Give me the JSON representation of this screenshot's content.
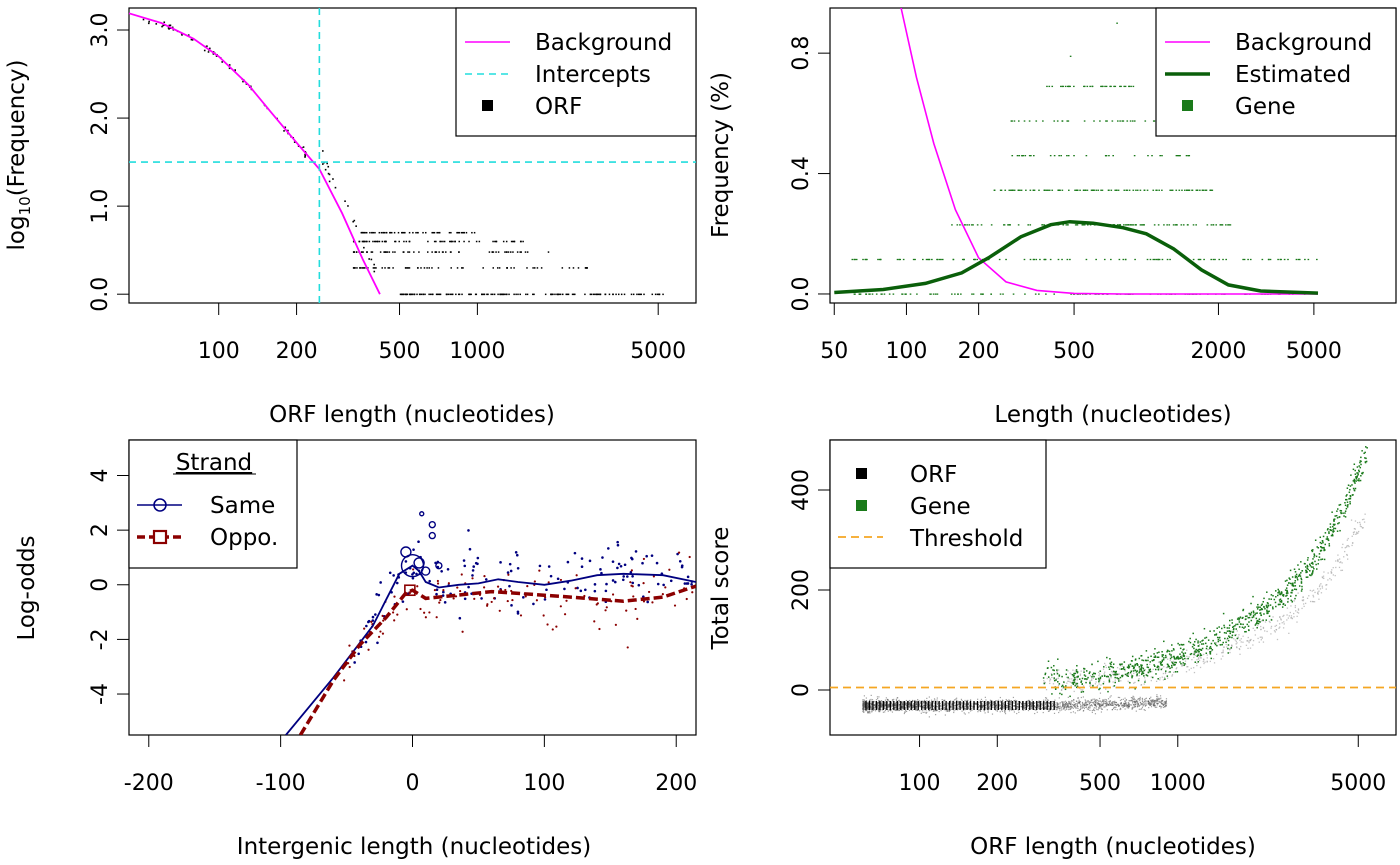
{
  "colors": {
    "background": "#ff00ff",
    "intercepts": "#22dddd",
    "estimated": "#0a5f0a",
    "gene": "#1a7a1a",
    "same": "#000080",
    "oppo": "#8b0000",
    "threshold": "#f5a623",
    "orf": "#000000"
  },
  "chart_data": [
    {
      "type": "scatter",
      "xlabel": "ORF length (nucleotides)",
      "ylabel_prefix": "log",
      "ylabel_sub": "10",
      "ylabel_suffix": "(Frequency)",
      "x_scale": "log",
      "xlim": [
        45,
        7000
      ],
      "ylim": [
        -0.1,
        3.25
      ],
      "xticks": [
        100,
        200,
        500,
        1000,
        5000
      ],
      "yticks": [
        0.0,
        1.0,
        2.0,
        3.0
      ],
      "ytick_labels": [
        "0.0",
        "1.0",
        "2.0",
        "3.0"
      ],
      "legend": {
        "position": "top-right",
        "entries": [
          {
            "label": "Background",
            "kind": "line"
          },
          {
            "label": "Intercepts",
            "kind": "dashed"
          },
          {
            "label": "ORF",
            "kind": "square"
          }
        ]
      },
      "intercepts": {
        "x": 245,
        "y": 1.5
      },
      "background_curve": [
        [
          45,
          3.19
        ],
        [
          60,
          3.08
        ],
        [
          80,
          2.9
        ],
        [
          100,
          2.7
        ],
        [
          130,
          2.38
        ],
        [
          160,
          2.06
        ],
        [
          200,
          1.72
        ],
        [
          245,
          1.42
        ],
        [
          300,
          0.92
        ],
        [
          360,
          0.4
        ],
        [
          420,
          0.0
        ]
      ],
      "orf_levels": [
        {
          "y": 0.0,
          "x_range": [
            500,
            5300
          ]
        },
        {
          "y": 0.3,
          "x_range": [
            330,
            3000
          ]
        },
        {
          "y": 0.48,
          "x_range": [
            330,
            2000
          ]
        },
        {
          "y": 0.6,
          "x_range": [
            330,
            1500
          ]
        },
        {
          "y": 0.7,
          "x_range": [
            350,
            1000
          ]
        }
      ]
    },
    {
      "type": "line",
      "xlabel": "Length (nucleotides)",
      "ylabel": "Frequency (%)",
      "x_scale": "log",
      "xlim": [
        48,
        11000
      ],
      "ylim": [
        -0.03,
        0.95
      ],
      "xticks": [
        50,
        100,
        200,
        500,
        2000,
        5000
      ],
      "yticks": [
        0.0,
        0.4,
        0.8
      ],
      "ytick_labels": [
        "0.0",
        "0.4",
        "0.8"
      ],
      "legend": {
        "position": "top-right",
        "entries": [
          {
            "label": "Background",
            "kind": "line"
          },
          {
            "label": "Estimated",
            "kind": "thick"
          },
          {
            "label": "Gene",
            "kind": "square"
          }
        ]
      },
      "series": [
        {
          "name": "Background",
          "x": [
            95,
            110,
            130,
            160,
            200,
            260,
            350,
            500,
            800,
            5200
          ],
          "y": [
            0.95,
            0.72,
            0.5,
            0.28,
            0.12,
            0.04,
            0.012,
            0.002,
            0.0,
            0.0
          ]
        },
        {
          "name": "Estimated",
          "x": [
            50,
            80,
            120,
            170,
            220,
            300,
            400,
            480,
            600,
            800,
            1000,
            1300,
            1700,
            2200,
            3000,
            5200
          ],
          "y": [
            0.005,
            0.015,
            0.035,
            0.07,
            0.12,
            0.19,
            0.23,
            0.24,
            0.235,
            0.22,
            0.2,
            0.15,
            0.08,
            0.03,
            0.01,
            0.003
          ]
        }
      ],
      "gene_levels": [
        0.0,
        0.115,
        0.23,
        0.345,
        0.46,
        0.575,
        0.69,
        0.79,
        0.9
      ]
    },
    {
      "type": "scatter",
      "xlabel": "Intergenic length (nucleotides)",
      "ylabel": "Log-odds",
      "xlim": [
        -215,
        215
      ],
      "ylim": [
        -5.5,
        5.3
      ],
      "xticks": [
        -200,
        -100,
        0,
        100,
        200
      ],
      "xtick_labels": [
        "-200",
        "-100",
        "0",
        "100",
        "200"
      ],
      "yticks": [
        -4,
        -2,
        0,
        2,
        4
      ],
      "ytick_labels": [
        "-4",
        "-2",
        "0",
        "2",
        "4"
      ],
      "legend": {
        "position": "top-left",
        "title": "Strand",
        "entries": [
          {
            "label": "Same",
            "kind": "circle-line"
          },
          {
            "label": "Oppo.",
            "kind": "square-dash"
          }
        ]
      },
      "series": [
        {
          "name": "Same",
          "x": [
            -96,
            -60,
            -30,
            -10,
            0,
            5,
            10,
            20,
            35,
            50,
            65,
            80,
            100,
            120,
            140,
            160,
            190,
            215
          ],
          "y": [
            -5.5,
            -3.4,
            -1.5,
            0.4,
            0.7,
            0.5,
            0.1,
            -0.1,
            0.0,
            0.05,
            0.2,
            0.1,
            0.0,
            0.15,
            0.35,
            0.4,
            0.35,
            0.1
          ]
        },
        {
          "name": "Oppo.",
          "x": [
            -85,
            -60,
            -40,
            -20,
            -5,
            0,
            10,
            30,
            60,
            90,
            120,
            160,
            190,
            215
          ],
          "y": [
            -5.5,
            -3.5,
            -2.2,
            -1.2,
            -0.3,
            -0.2,
            -0.5,
            -0.4,
            -0.25,
            -0.35,
            -0.45,
            -0.6,
            -0.45,
            -0.05
          ]
        }
      ]
    },
    {
      "type": "scatter",
      "xlabel": "ORF length (nucleotides)",
      "ylabel": "Total score",
      "x_scale": "log",
      "xlim": [
        45,
        7000
      ],
      "ylim": [
        -90,
        500
      ],
      "xticks": [
        100,
        200,
        500,
        1000,
        5000
      ],
      "yticks": [
        0,
        200,
        400
      ],
      "legend": {
        "position": "top-left",
        "entries": [
          {
            "label": "ORF",
            "kind": "square"
          },
          {
            "label": "Gene",
            "kind": "square"
          },
          {
            "label": "Threshold",
            "kind": "dashed"
          }
        ]
      },
      "threshold": 5,
      "gene_trend": {
        "x": [
          400,
          700,
          1000,
          1500,
          2000,
          2800,
          3500,
          4500,
          5300
        ],
        "y": [
          25,
          45,
          70,
          110,
          150,
          210,
          270,
          380,
          470
        ]
      },
      "orf_x_range": [
        60,
        900
      ]
    }
  ]
}
